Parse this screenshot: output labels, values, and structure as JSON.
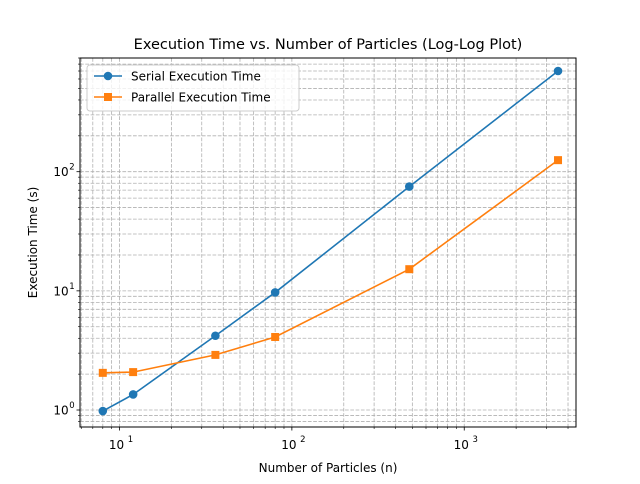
{
  "chart_data": {
    "type": "line",
    "title": "Execution Time vs. Number of Particles (Log-Log Plot)",
    "xlabel": "Number of Particles (n)",
    "ylabel": "Execution Time (s)",
    "xscale": "log",
    "yscale": "log",
    "xlim": [
      5.9,
      4450
    ],
    "ylim": [
      0.72,
      900
    ],
    "x_ticks": [
      {
        "value": 10,
        "base": "10",
        "exp": "1"
      },
      {
        "value": 100,
        "base": "10",
        "exp": "2"
      },
      {
        "value": 1000,
        "base": "10",
        "exp": "3"
      }
    ],
    "y_ticks": [
      {
        "value": 1,
        "base": "10",
        "exp": "0"
      },
      {
        "value": 10,
        "base": "10",
        "exp": "1"
      },
      {
        "value": 100,
        "base": "10",
        "exp": "2"
      }
    ],
    "grid": true,
    "grid_which": "both",
    "legend_position": "top-left",
    "series": [
      {
        "name": "Serial Execution Time",
        "color": "#1f77b4",
        "marker": "circle",
        "x": [
          8,
          12,
          36,
          80,
          480,
          3500
        ],
        "y": [
          0.98,
          1.35,
          4.2,
          9.7,
          75,
          700
        ]
      },
      {
        "name": "Parallel Execution Time",
        "color": "#ff7f0e",
        "marker": "square",
        "x": [
          8,
          12,
          36,
          80,
          480,
          3500
        ],
        "y": [
          2.05,
          2.08,
          2.9,
          4.1,
          15.2,
          125
        ]
      }
    ]
  }
}
